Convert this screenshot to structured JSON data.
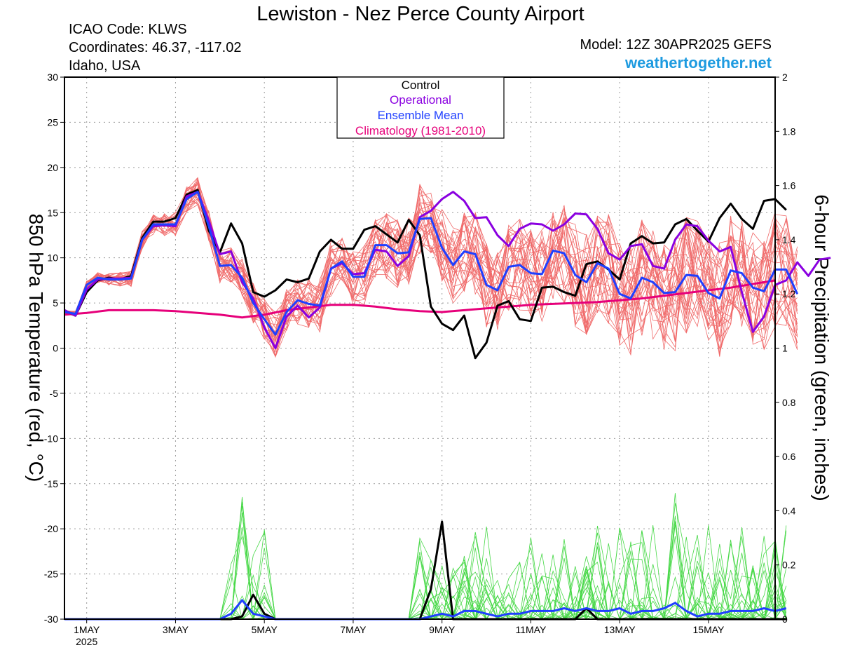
{
  "header": {
    "title": "Lewiston - Nez Perce County Airport",
    "icao": "ICAO Code: KLWS",
    "coords": "Coordinates: 46.37, -117.02",
    "region": "Idaho, USA",
    "model": "Model: 12Z 30APR2025 GEFS",
    "site": "weathertogether.net"
  },
  "legend": {
    "items": [
      {
        "label": "Control",
        "color": "#000000"
      },
      {
        "label": "Operational",
        "color": "#8a00e0"
      },
      {
        "label": "Ensemble Mean",
        "color": "#1f3fff"
      },
      {
        "label": "Climatology (1981-2010)",
        "color": "#e6007a"
      }
    ]
  },
  "colors": {
    "members_temp": "#f06a6a",
    "members_precip": "#46d846",
    "control": "#000000",
    "operational": "#8a00e0",
    "mean": "#1f3fff",
    "climatology": "#e6007a",
    "site": "#1e9be0"
  },
  "chart_data": {
    "type": "line",
    "title": "Lewiston - Nez Perce County Airport",
    "ylabel": "850 hPa Temperature (red, °C)",
    "y2label": "6-hour Precipitation (green, inches)",
    "ylim": [
      -30,
      30
    ],
    "y2lim": [
      0,
      2
    ],
    "x_range_days": [
      30.5,
      46.5
    ],
    "x_ticks": [
      {
        "day": 31,
        "label": "1MAY",
        "sub": "2025"
      },
      {
        "day": 33,
        "label": "3MAY"
      },
      {
        "day": 35,
        "label": "5MAY"
      },
      {
        "day": 37,
        "label": "7MAY"
      },
      {
        "day": 39,
        "label": "9MAY"
      },
      {
        "day": 41,
        "label": "11MAY"
      },
      {
        "day": 43,
        "label": "13MAY"
      },
      {
        "day": 45,
        "label": "15MAY"
      }
    ],
    "y_ticks": [
      30,
      25,
      20,
      15,
      10,
      5,
      0,
      -5,
      -10,
      -15,
      -20,
      -25,
      -30
    ],
    "y2_ticks": [
      "2",
      "1.8",
      "1.6",
      "1.4",
      "1.2",
      "1",
      "0.8",
      "0.6",
      "0.4",
      "0.2",
      "0"
    ],
    "x_start_day": 30.5,
    "step_days": 0.25,
    "series": [
      {
        "name": "Control",
        "kind": "temp",
        "values": [
          4.2,
          3.6,
          6.2,
          7.5,
          7.8,
          7.6,
          8.0,
          12.2,
          14.0,
          14.0,
          14.4,
          17.0,
          17.5,
          13.0,
          10.6,
          13.8,
          11.6,
          6.2,
          5.7,
          6.4,
          7.6,
          7.3,
          7.7,
          10.7,
          12.0,
          11.0,
          11.0,
          13.1,
          13.5,
          12.6,
          11.7,
          14.2,
          12.5,
          4.6,
          2.7,
          2.0,
          3.6,
          -1.1,
          0.6,
          4.7,
          5.2,
          3.2,
          3.0,
          6.7,
          6.8,
          6.2,
          5.8,
          9.3,
          9.6,
          8.7,
          7.6,
          11.6,
          12.4,
          11.6,
          11.7,
          13.7,
          14.3,
          13.0,
          11.8,
          14.4,
          16.0,
          14.3,
          13.2,
          16.3,
          16.5,
          15.3
        ]
      },
      {
        "name": "Operational",
        "kind": "temp",
        "values": [
          4.2,
          3.6,
          6.5,
          7.6,
          7.7,
          7.7,
          7.8,
          12.0,
          13.5,
          13.6,
          13.5,
          16.8,
          17.3,
          14.1,
          10.4,
          10.7,
          7.3,
          5.5,
          2.3,
          0.0,
          3.5,
          4.7,
          3.4,
          4.5,
          8.8,
          9.4,
          8.2,
          8.3,
          10.9,
          10.7,
          9.1,
          10.2,
          14.5,
          15.2,
          16.5,
          17.3,
          16.3,
          14.4,
          14.5,
          12.5,
          11.3,
          13.2,
          13.8,
          13.7,
          13.0,
          13.7,
          14.9,
          14.8,
          13.2,
          10.5,
          9.8,
          11.3,
          11.5,
          9.1,
          8.8,
          12.0,
          13.7,
          13.5,
          11.9,
          10.7,
          11.2,
          6.2,
          1.8,
          3.5,
          7.0,
          7.5,
          9.5,
          8.0,
          9.8,
          10.0
        ]
      },
      {
        "name": "Ensemble Mean",
        "kind": "temp",
        "values": [
          4.0,
          3.8,
          7.0,
          7.8,
          7.6,
          7.6,
          7.7,
          12.0,
          13.7,
          13.7,
          13.7,
          16.5,
          17.3,
          13.5,
          9.1,
          9.2,
          7.8,
          5.0,
          3.2,
          1.5,
          4.0,
          5.3,
          4.9,
          4.7,
          8.8,
          9.6,
          7.9,
          7.9,
          11.4,
          11.4,
          10.5,
          10.6,
          14.3,
          14.4,
          11.1,
          9.2,
          10.7,
          10.4,
          7.0,
          6.4,
          9.0,
          9.2,
          8.3,
          8.2,
          10.8,
          10.5,
          8.1,
          7.3,
          9.4,
          8.8,
          6.0,
          5.5,
          7.8,
          7.3,
          6.1,
          6.2,
          8.1,
          8.0,
          6.1,
          5.5,
          8.6,
          8.3,
          6.7,
          6.3,
          8.7,
          8.7,
          6.0
        ]
      },
      {
        "name": "Climatology (1981-2010)",
        "kind": "climo",
        "x_days": [
          30.5,
          31.0,
          31.5,
          32.0,
          32.5,
          33.0,
          33.5,
          34.0,
          34.5,
          35.0,
          35.5,
          36.0,
          36.5,
          37.0,
          37.5,
          38.0,
          38.5,
          39.0,
          39.5,
          40.0,
          40.5,
          41.0,
          41.5,
          42.0,
          42.5,
          43.0,
          43.5,
          44.0,
          44.5,
          45.0,
          45.5,
          46.0,
          46.5
        ],
        "values": [
          3.7,
          3.9,
          4.2,
          4.2,
          4.2,
          4.1,
          3.9,
          3.7,
          3.4,
          3.7,
          4.2,
          4.5,
          4.8,
          4.8,
          4.6,
          4.3,
          4.1,
          4.0,
          4.2,
          4.4,
          4.6,
          4.8,
          4.9,
          5.0,
          5.1,
          5.3,
          5.5,
          5.8,
          6.1,
          6.4,
          6.7,
          7.1,
          7.5
        ]
      },
      {
        "name": "Control",
        "kind": "precip",
        "values": [
          0,
          0,
          0,
          0,
          0,
          0,
          0,
          0,
          0,
          0,
          0,
          0,
          0,
          0,
          0,
          0,
          0.01,
          0.09,
          0.02,
          0,
          0,
          0,
          0,
          0,
          0,
          0,
          0,
          0,
          0,
          0,
          0,
          0,
          0,
          0.11,
          0.36,
          0,
          0,
          0,
          0,
          0,
          0,
          0,
          0,
          0,
          0,
          0,
          0,
          0.04,
          0,
          0,
          0,
          0,
          0,
          0,
          0,
          0,
          0,
          0,
          0,
          0,
          0,
          0,
          0,
          0,
          0,
          0
        ]
      },
      {
        "name": "Ensemble Mean",
        "kind": "precip",
        "values": [
          0,
          0,
          0,
          0,
          0,
          0,
          0,
          0,
          0,
          0,
          0,
          0,
          0,
          0,
          0,
          0.02,
          0.07,
          0.02,
          0.01,
          0,
          0,
          0,
          0,
          0,
          0,
          0,
          0,
          0,
          0,
          0,
          0,
          0,
          0,
          0.01,
          0.02,
          0.01,
          0.03,
          0.03,
          0.02,
          0.01,
          0.02,
          0.02,
          0.03,
          0.03,
          0.03,
          0.04,
          0.03,
          0.04,
          0.03,
          0.03,
          0.04,
          0.02,
          0.03,
          0.03,
          0.04,
          0.06,
          0.03,
          0.01,
          0.02,
          0.02,
          0.03,
          0.03,
          0.03,
          0.04,
          0.03,
          0.04
        ]
      }
    ],
    "member_counts": {
      "temp": 30,
      "precip": 30
    }
  }
}
